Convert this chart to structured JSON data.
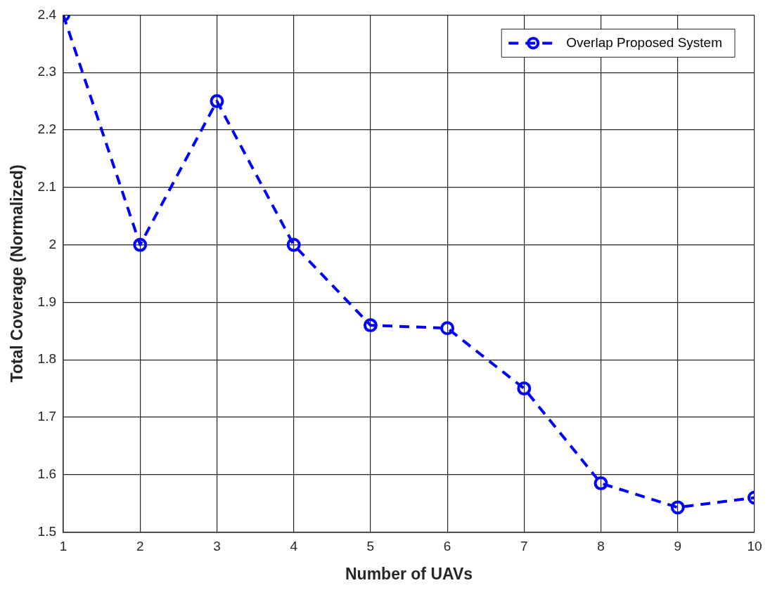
{
  "chart_data": {
    "type": "line",
    "xlabel": "Number of UAVs",
    "ylabel": "Total Coverage (Normalized)",
    "x": [
      1,
      2,
      3,
      4,
      5,
      6,
      7,
      8,
      9,
      10
    ],
    "series": [
      {
        "name": "Overlap Proposed System",
        "color": "#0000ff",
        "values": [
          2.4,
          2.0,
          2.25,
          2.0,
          1.86,
          1.855,
          1.75,
          1.585,
          1.543,
          1.56
        ]
      }
    ],
    "xlim": [
      1,
      10
    ],
    "xticks": [
      1,
      2,
      3,
      4,
      5,
      6,
      7,
      8,
      9,
      10
    ],
    "ylim": [
      1.5,
      2.4
    ],
    "yticks": [
      1.5,
      1.6,
      1.7,
      1.8,
      1.9,
      2,
      2.1,
      2.2,
      2.3,
      2.4
    ],
    "grid": true,
    "legend": "top right",
    "marker": "circle",
    "line_style": "dashed"
  }
}
